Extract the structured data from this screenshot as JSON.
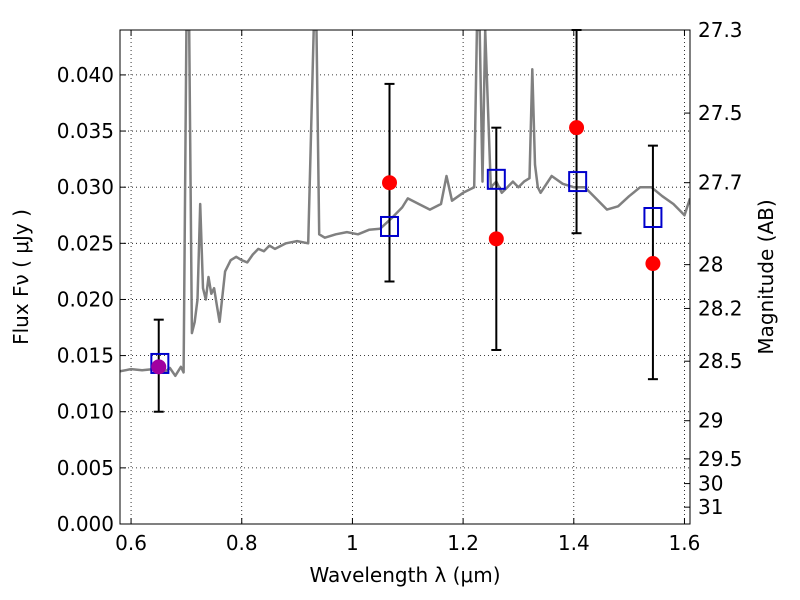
{
  "chart_data": {
    "type": "scatter",
    "xlabel": "Wavelength  λ (μm)",
    "ylabel": "Flux  Fν  ( μJy )",
    "ylabel_right": "Magnitude (AB)",
    "xlim": [
      0.58,
      1.61
    ],
    "ylim": [
      0.0,
      0.044
    ],
    "x_ticks": [
      0.6,
      0.8,
      1.0,
      1.2,
      1.4,
      1.6
    ],
    "x_tick_labels": [
      "0.6",
      "0.8",
      "1",
      "1.2",
      "1.4",
      "1.6"
    ],
    "y_ticks": [
      0.0,
      0.005,
      0.01,
      0.015,
      0.02,
      0.025,
      0.03,
      0.035,
      0.04
    ],
    "y_tick_labels": [
      "0.000",
      "0.005",
      "0.010",
      "0.015",
      "0.020",
      "0.025",
      "0.030",
      "0.035",
      "0.040"
    ],
    "right_ticks": [
      {
        "label": "27.3",
        "flux": 0.044
      },
      {
        "label": "27.5",
        "flux": 0.0366
      },
      {
        "label": "27.7",
        "flux": 0.0304
      },
      {
        "label": "28",
        "flux": 0.0231
      },
      {
        "label": "28.2",
        "flux": 0.0192
      },
      {
        "label": "28.5",
        "flux": 0.0145
      },
      {
        "label": "29",
        "flux": 0.0092
      },
      {
        "label": "29.5",
        "flux": 0.0058
      },
      {
        "label": "30",
        "flux": 0.0036
      },
      {
        "label": "31",
        "flux": 0.0015
      }
    ],
    "grid": true,
    "colors": {
      "spectrum": "#808080",
      "measured": "#ff0000",
      "model": "#0000cc",
      "errorbar": "#000000",
      "overlap": "#a000a0"
    },
    "spectrum": {
      "name": "",
      "x": [
        0.58,
        0.6,
        0.62,
        0.64,
        0.66,
        0.67,
        0.68,
        0.69,
        0.695,
        0.7,
        0.705,
        0.71,
        0.715,
        0.72,
        0.725,
        0.73,
        0.735,
        0.74,
        0.745,
        0.75,
        0.755,
        0.76,
        0.77,
        0.78,
        0.79,
        0.8,
        0.81,
        0.82,
        0.83,
        0.84,
        0.85,
        0.86,
        0.88,
        0.9,
        0.92,
        0.93,
        0.935,
        0.94,
        0.95,
        0.97,
        0.99,
        1.01,
        1.03,
        1.05,
        1.07,
        1.09,
        1.1,
        1.12,
        1.14,
        1.16,
        1.17,
        1.18,
        1.2,
        1.22,
        1.225,
        1.23,
        1.235,
        1.24,
        1.25,
        1.26,
        1.27,
        1.28,
        1.29,
        1.3,
        1.31,
        1.32,
        1.325,
        1.33,
        1.335,
        1.34,
        1.36,
        1.38,
        1.4,
        1.42,
        1.44,
        1.46,
        1.48,
        1.5,
        1.52,
        1.54,
        1.56,
        1.58,
        1.6,
        1.61
      ],
      "y": [
        0.0136,
        0.0138,
        0.0137,
        0.0138,
        0.0135,
        0.0139,
        0.0132,
        0.014,
        0.0135,
        0.044,
        0.044,
        0.017,
        0.018,
        0.02,
        0.0285,
        0.021,
        0.02,
        0.022,
        0.0205,
        0.021,
        0.0195,
        0.018,
        0.0225,
        0.0235,
        0.0238,
        0.0235,
        0.0233,
        0.024,
        0.0245,
        0.0243,
        0.0248,
        0.0245,
        0.025,
        0.0252,
        0.025,
        0.044,
        0.044,
        0.0258,
        0.0255,
        0.0258,
        0.026,
        0.0258,
        0.0262,
        0.0263,
        0.0272,
        0.0282,
        0.029,
        0.0285,
        0.028,
        0.0285,
        0.031,
        0.0288,
        0.0295,
        0.03,
        0.044,
        0.044,
        0.0305,
        0.044,
        0.03,
        0.0305,
        0.0295,
        0.03,
        0.0305,
        0.03,
        0.0305,
        0.0308,
        0.0405,
        0.032,
        0.03,
        0.0295,
        0.031,
        0.0303,
        0.03,
        0.03,
        0.029,
        0.028,
        0.0283,
        0.0292,
        0.03,
        0.03,
        0.0292,
        0.0285,
        0.0275,
        0.029
      ]
    },
    "measured": [
      {
        "x": 0.65,
        "y": 0.014,
        "err_low": 0.01,
        "err_high": 0.0182
      },
      {
        "x": 1.067,
        "y": 0.0304,
        "err_low": 0.0216,
        "err_high": 0.0392
      },
      {
        "x": 1.26,
        "y": 0.0254,
        "err_low": 0.0155,
        "err_high": 0.0353
      },
      {
        "x": 1.405,
        "y": 0.0353,
        "err_low": 0.0259,
        "err_high": 0.044
      },
      {
        "x": 1.543,
        "y": 0.0232,
        "err_low": 0.0129,
        "err_high": 0.0337
      }
    ],
    "model": [
      {
        "x": 0.652,
        "y": 0.0143
      },
      {
        "x": 1.067,
        "y": 0.0265
      },
      {
        "x": 1.26,
        "y": 0.0307
      },
      {
        "x": 1.407,
        "y": 0.0305
      },
      {
        "x": 1.543,
        "y": 0.0273
      }
    ]
  }
}
